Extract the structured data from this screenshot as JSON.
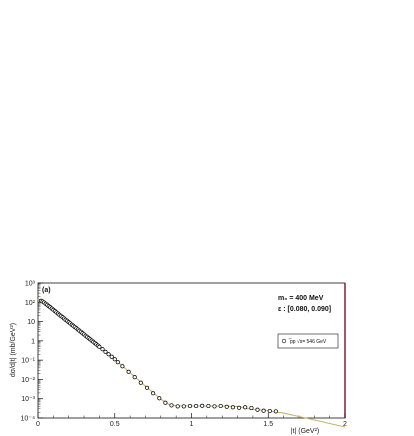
{
  "chart_data": {
    "type": "scatter",
    "panel_label": "(a)",
    "xlabel": "|t| (GeV²)",
    "ylabel": "dσ/d|t| (mb/GeV²)",
    "xlim": [
      0,
      2
    ],
    "ylim_log10": [
      -4,
      3
    ],
    "x_scale": "linear",
    "y_scale": "log",
    "x_ticks": [
      0,
      0.5,
      1,
      1.5,
      2
    ],
    "x_tick_labels": [
      "0",
      "0.5",
      "1",
      "1.5",
      "2"
    ],
    "y_tick_exponents": [
      -4,
      -3,
      -2,
      -1,
      0,
      1,
      2,
      3
    ],
    "y_tick_labels": [
      "10⁻⁴",
      "10⁻³",
      "10⁻²",
      "10⁻¹",
      "1",
      "10",
      "10²",
      "10³"
    ],
    "annotations": [
      "m₀ = 400 MeV",
      "ε : [0.080, 0.090]"
    ],
    "legend": {
      "placement": "right",
      "entries": [
        "̅pp √s= 546 GeV"
      ]
    },
    "series": [
      {
        "name": "̅pp √s= 546 GeV",
        "kind": "data-points",
        "color": "#000000",
        "x": [
          0.02,
          0.03,
          0.04,
          0.05,
          0.06,
          0.07,
          0.08,
          0.09,
          0.1,
          0.11,
          0.12,
          0.13,
          0.14,
          0.15,
          0.16,
          0.17,
          0.18,
          0.19,
          0.2,
          0.21,
          0.22,
          0.23,
          0.24,
          0.25,
          0.26,
          0.27,
          0.28,
          0.29,
          0.3,
          0.31,
          0.32,
          0.33,
          0.34,
          0.35,
          0.36,
          0.37,
          0.38,
          0.39,
          0.4,
          0.42,
          0.44,
          0.46,
          0.48,
          0.5,
          0.52,
          0.55,
          0.59,
          0.63,
          0.67,
          0.71,
          0.75,
          0.79,
          0.83,
          0.87,
          0.91,
          0.95,
          0.99,
          1.03,
          1.07,
          1.11,
          1.15,
          1.19,
          1.23,
          1.27,
          1.31,
          1.35,
          1.39,
          1.43,
          1.47,
          1.51,
          1.55
        ],
        "y": [
          120,
          110,
          97,
          84,
          73,
          63,
          55,
          47,
          41,
          35,
          30,
          26,
          22.5,
          19.5,
          16.8,
          14.5,
          12.5,
          10.8,
          9.3,
          8.0,
          6.9,
          6.0,
          5.2,
          4.5,
          3.9,
          3.35,
          2.9,
          2.5,
          2.15,
          1.85,
          1.6,
          1.38,
          1.19,
          1.03,
          0.89,
          0.77,
          0.66,
          0.57,
          0.49,
          0.37,
          0.27,
          0.2,
          0.15,
          0.11,
          0.078,
          0.048,
          0.025,
          0.013,
          0.0068,
          0.0037,
          0.0019,
          0.00105,
          0.00062,
          0.00045,
          0.0004,
          0.0004,
          0.00042,
          0.00042,
          0.00043,
          0.00042,
          0.0004,
          0.00042,
          0.00038,
          0.00036,
          0.00034,
          0.00036,
          0.00033,
          0.00027,
          0.00024,
          0.00023,
          0.00022
        ]
      },
      {
        "name": "",
        "kind": "model-curve",
        "color": "#c8b46a",
        "x": [
          0,
          0.1,
          0.2,
          0.3,
          0.4,
          0.5,
          0.6,
          0.7,
          0.8,
          0.85,
          0.9,
          1.0,
          1.1,
          1.2,
          1.3,
          1.35,
          1.4,
          1.5,
          1.6,
          1.7,
          1.8,
          1.9,
          2.0
        ],
        "y": [
          150,
          40,
          9.6,
          2.2,
          0.5,
          0.11,
          0.022,
          0.0045,
          0.00095,
          0.00052,
          0.00043,
          0.00042,
          0.00042,
          0.00041,
          0.0004,
          0.00032,
          0.00028,
          0.00024,
          0.00018,
          0.00012,
          8e-05,
          5.2e-05,
          3.4e-05
        ]
      }
    ]
  }
}
